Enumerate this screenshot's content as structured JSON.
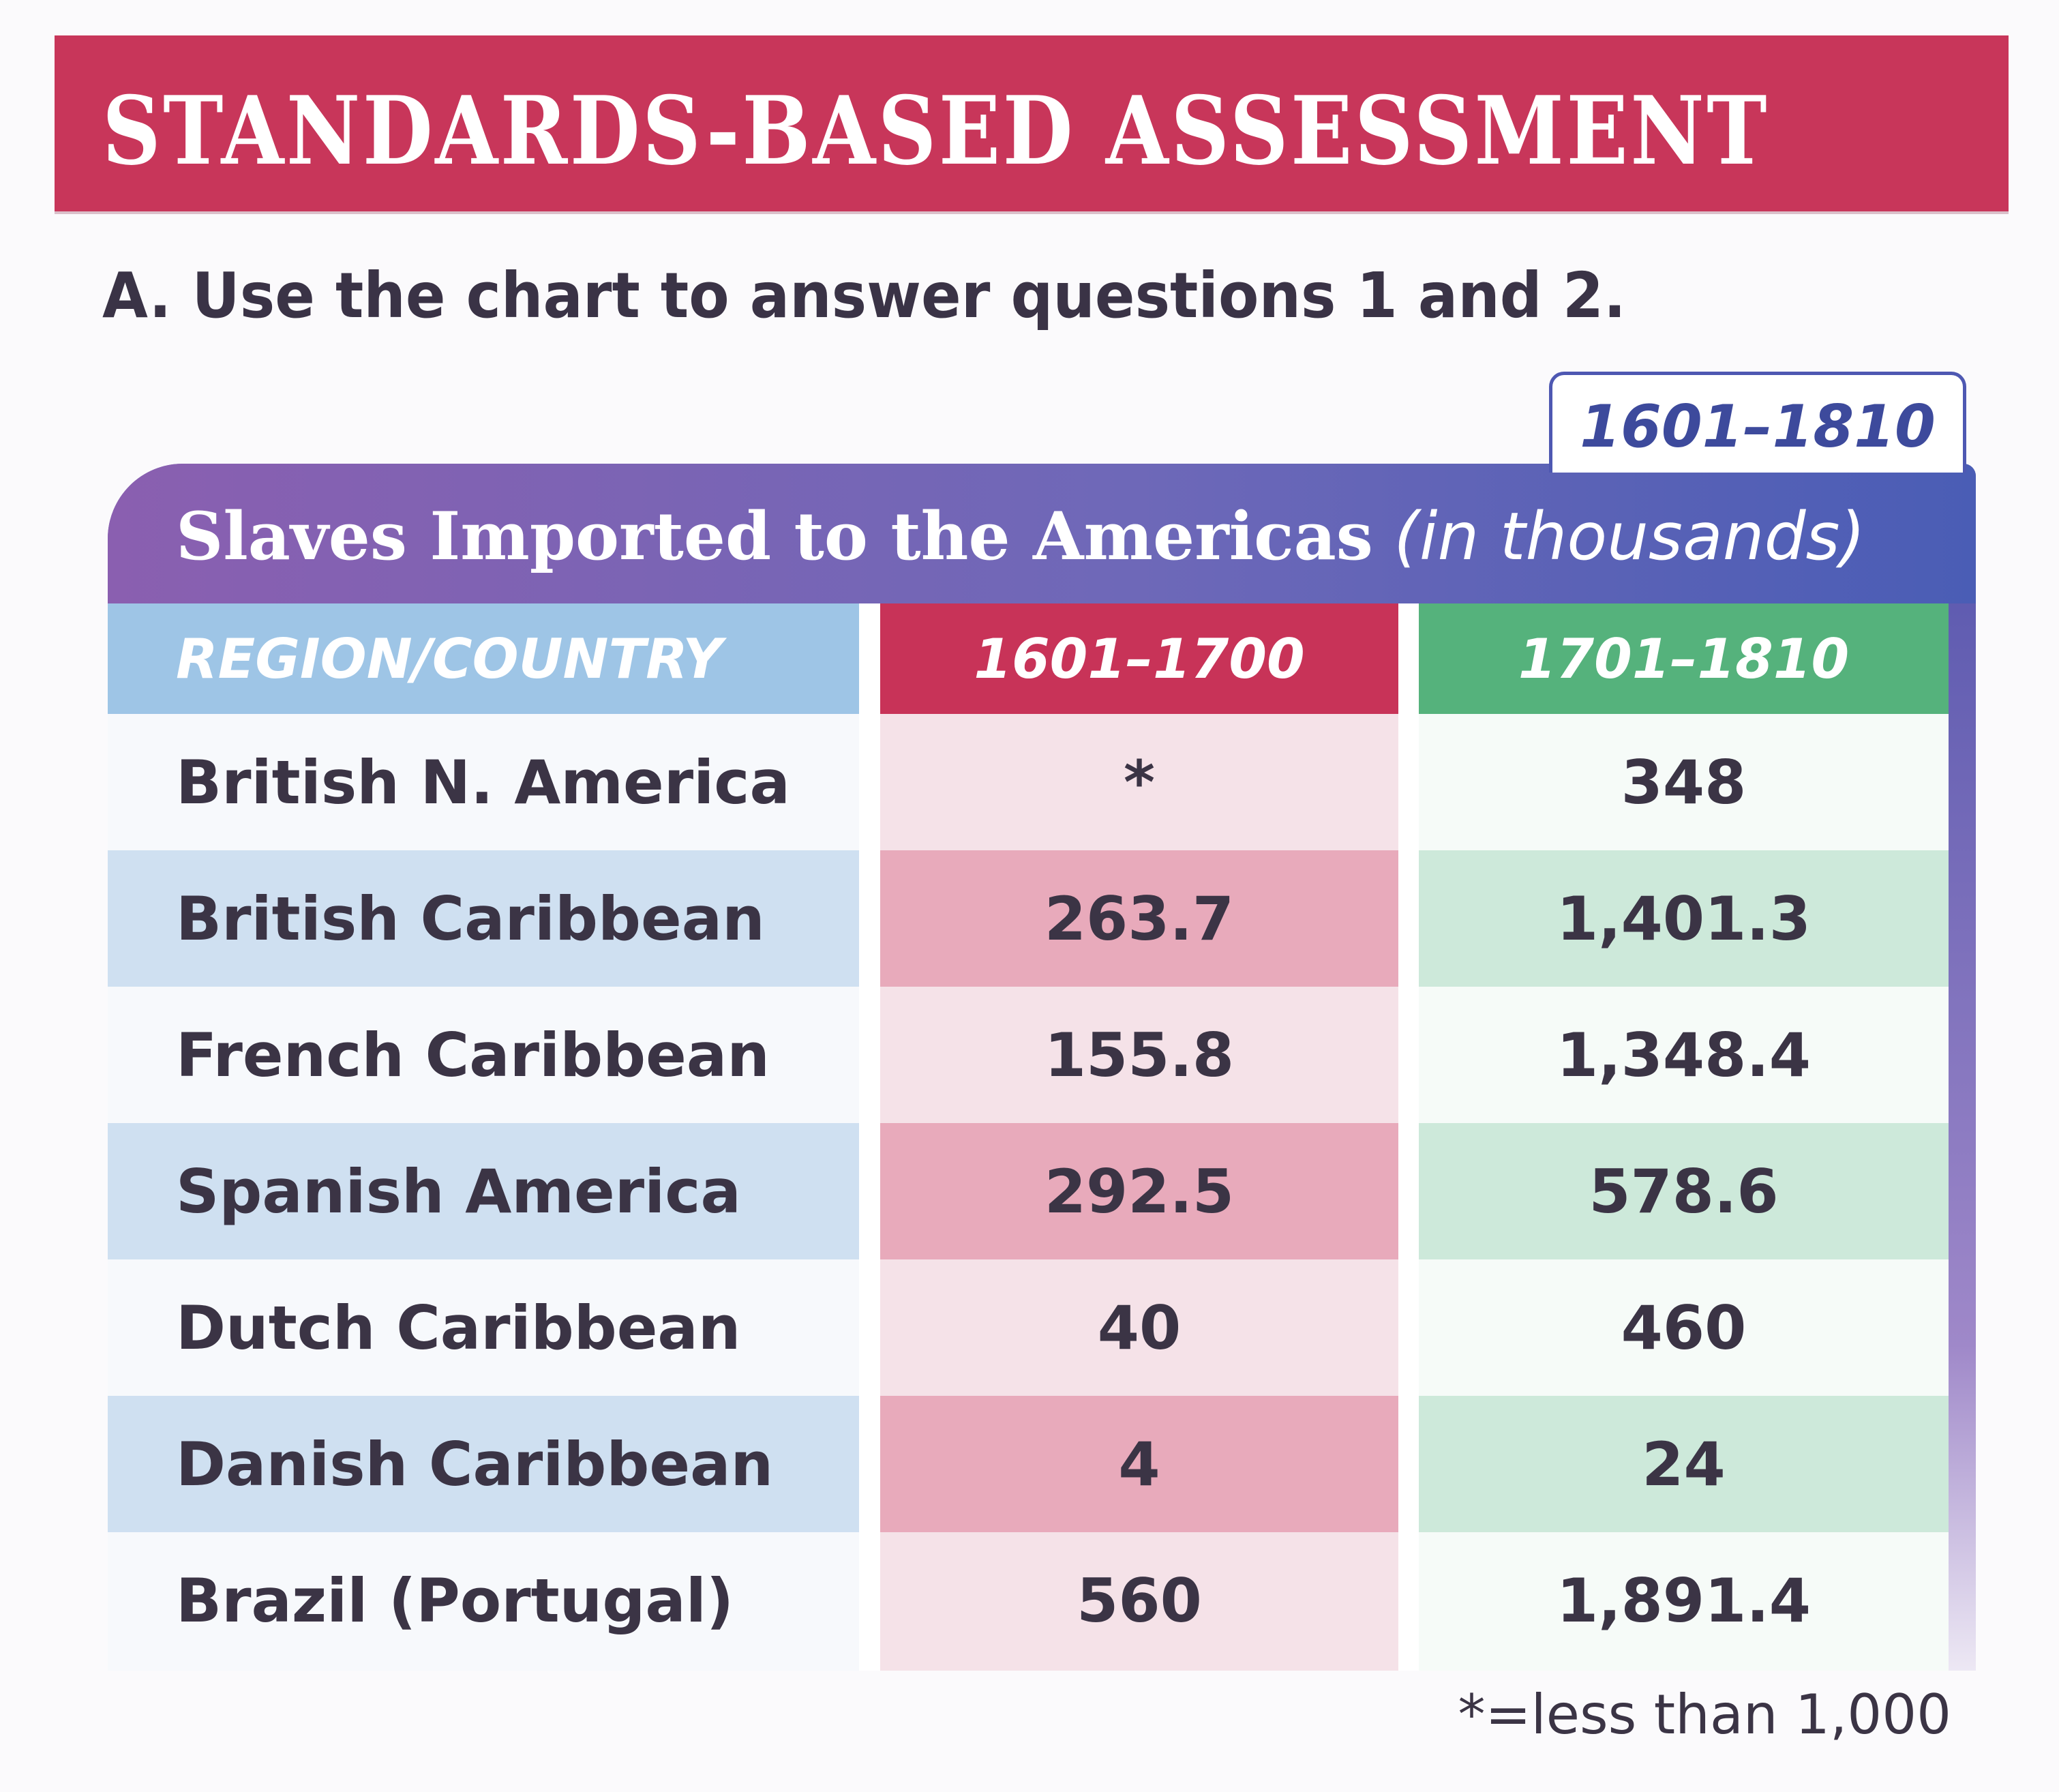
{
  "banner": {
    "title": "STANDARDS-BASED ASSESSMENT"
  },
  "instruction": "A. Use the chart to answer questions 1 and 2.",
  "chart": {
    "date_tab": "1601–1810",
    "title_main": "Slaves Imported to the Americas",
    "title_unit": "(in thousands)",
    "headers": [
      "REGION/COUNTRY",
      "1601–1700",
      "1701–1810"
    ],
    "rows": [
      {
        "region": "British N. America",
        "p1": "*",
        "p2": "348"
      },
      {
        "region": "British Caribbean",
        "p1": "263.7",
        "p2": "1,401.3"
      },
      {
        "region": "French Caribbean",
        "p1": "155.8",
        "p2": "1,348.4"
      },
      {
        "region": "Spanish America",
        "p1": "292.5",
        "p2": "578.6"
      },
      {
        "region": "Dutch Caribbean",
        "p1": "40",
        "p2": "460"
      },
      {
        "region": "Danish Caribbean",
        "p1": "4",
        "p2": "24"
      },
      {
        "region": "Brazil (Portugal)",
        "p1": "560",
        "p2": "1,891.4"
      }
    ],
    "footnote": "*=less than 1,000"
  },
  "colors": {
    "banner": "#c8365a",
    "header_region": "#9ec5e6",
    "header_period1": "#c83358",
    "header_period2": "#55b27c",
    "title_band": "#6e68b8"
  }
}
